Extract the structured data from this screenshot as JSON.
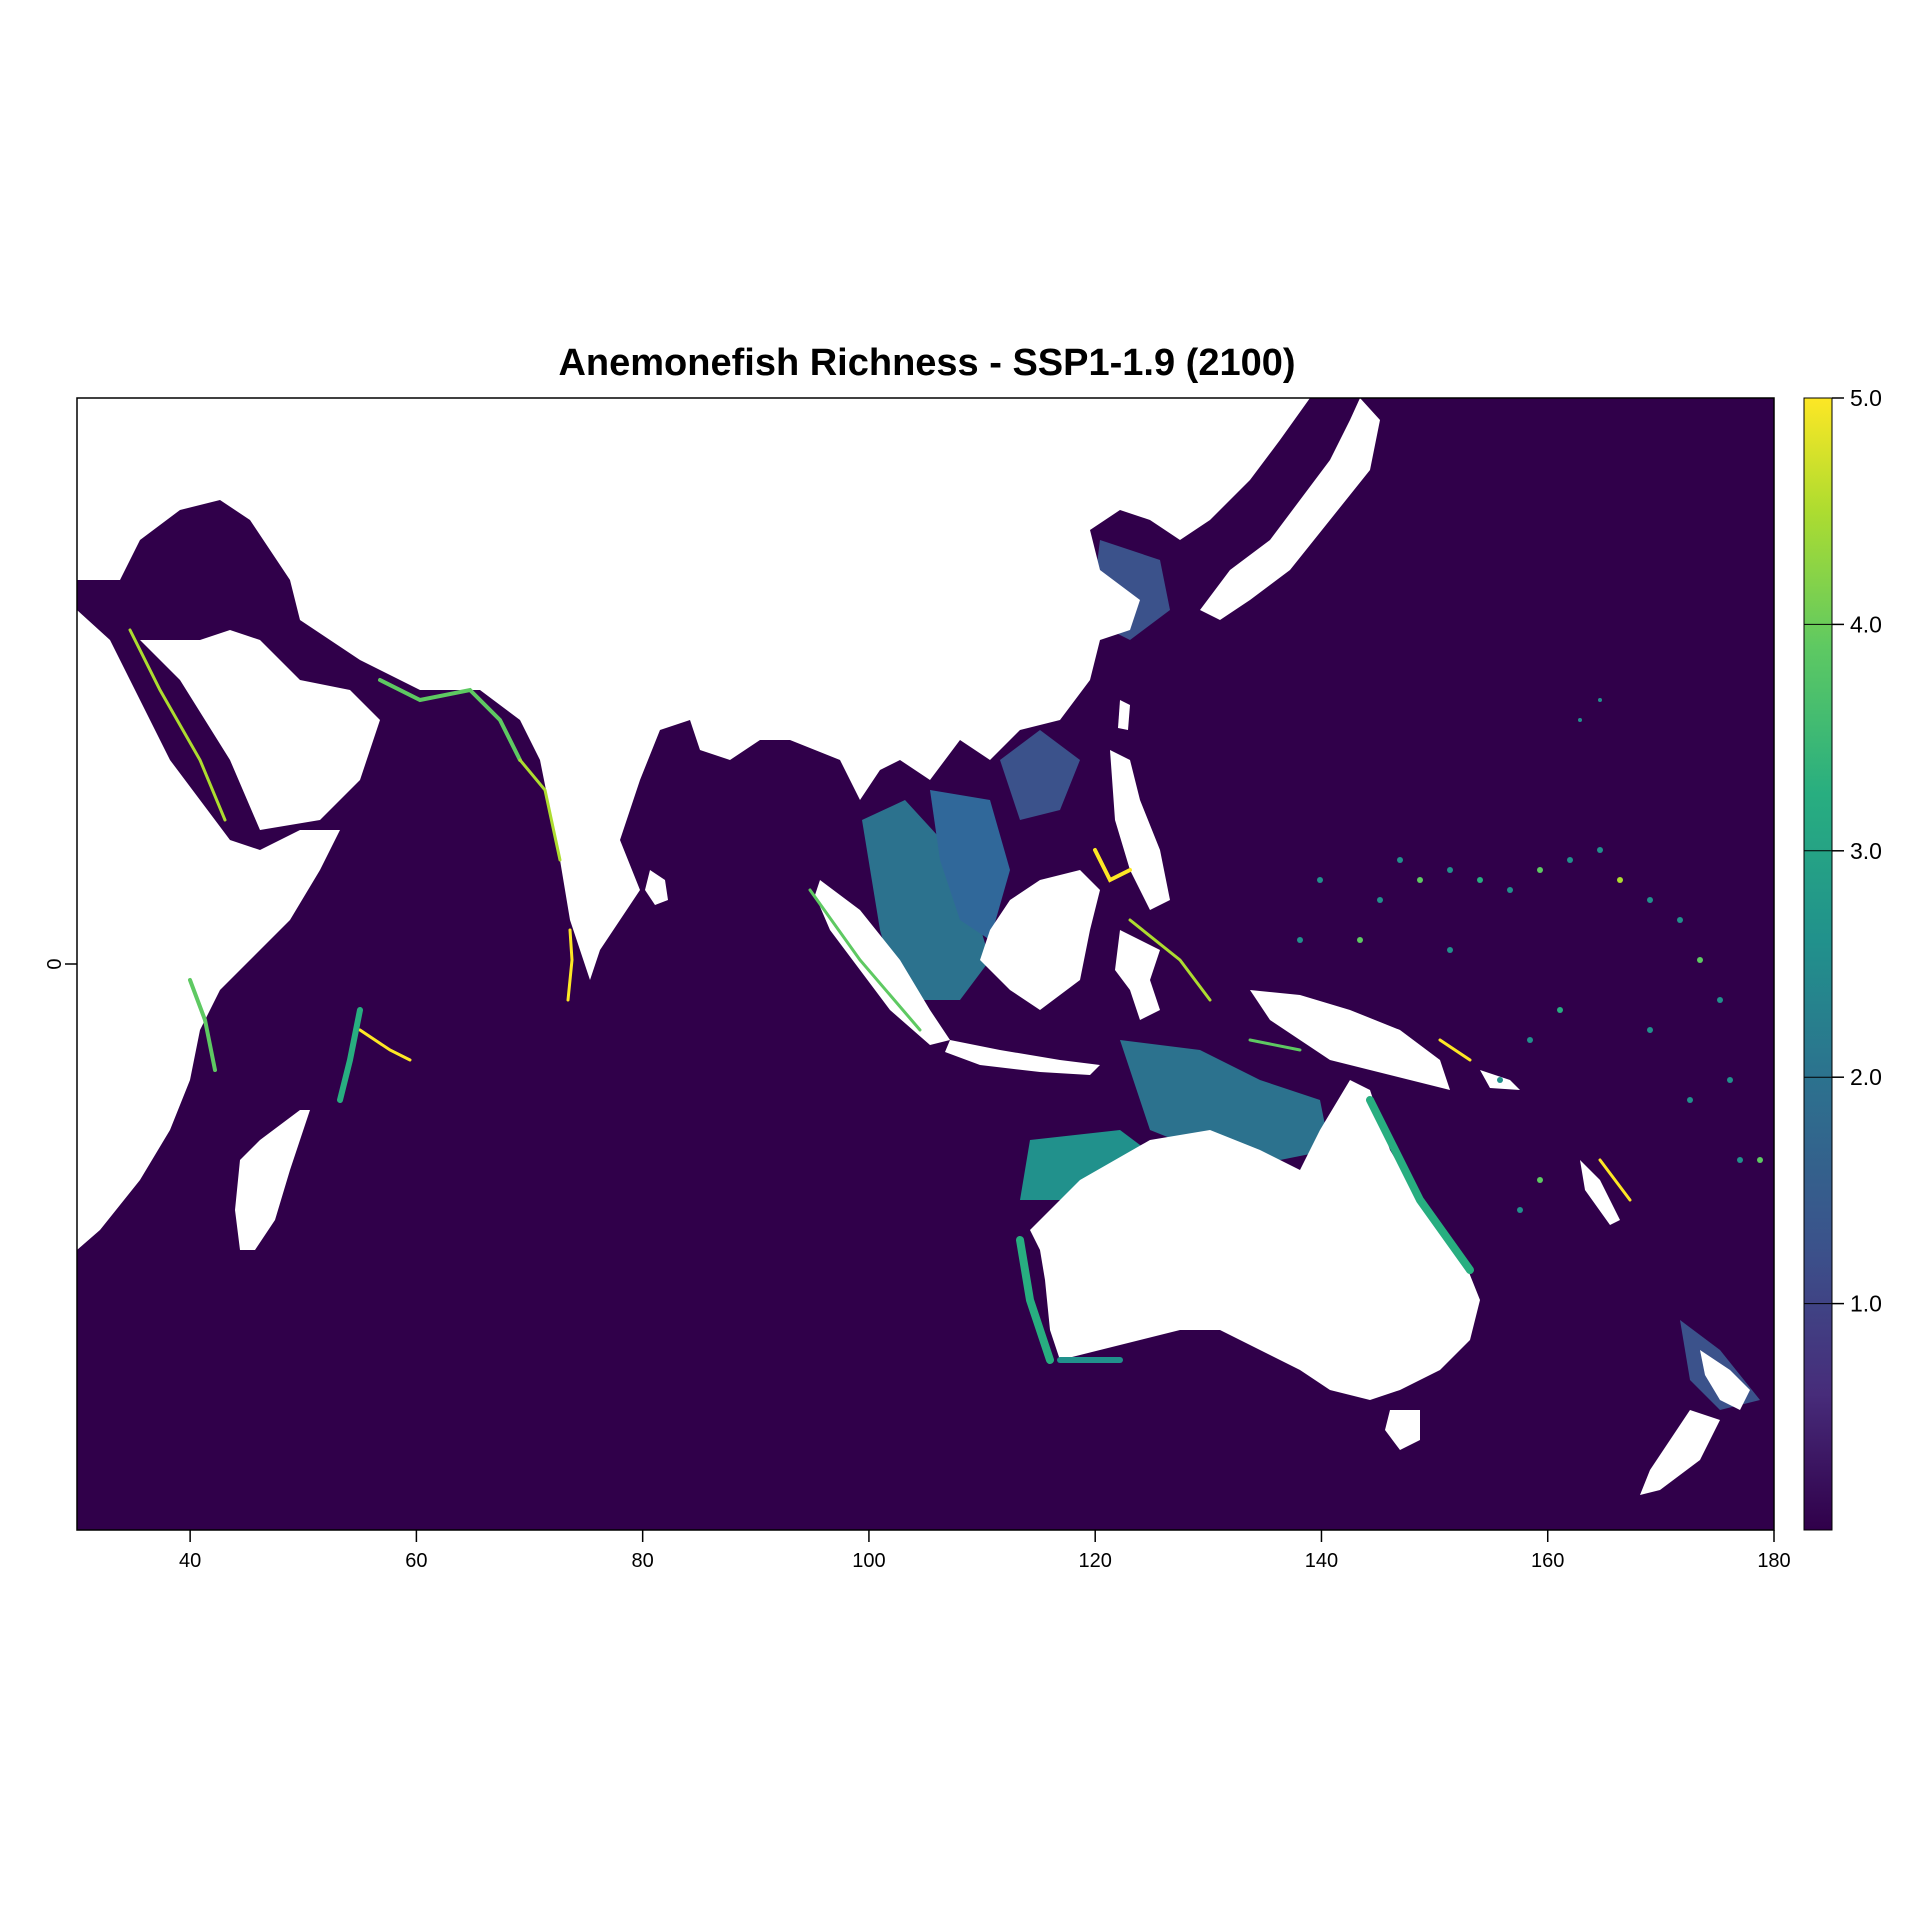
{
  "chart_data": {
    "type": "heatmap",
    "title": "Anemonefish Richness - SSP1-1.9 (2100)",
    "xlabel": "",
    "ylabel": "",
    "xlim": [
      30,
      180
    ],
    "ylim": [
      -50,
      50
    ],
    "x_ticks": [
      "40",
      "60",
      "80",
      "100",
      "120",
      "140",
      "160",
      "180"
    ],
    "x_tick_values": [
      40,
      60,
      80,
      100,
      120,
      140,
      160,
      180
    ],
    "y_ticks": [
      "0"
    ],
    "y_tick_values": [
      0
    ],
    "colorbar": {
      "range": [
        0,
        5
      ],
      "ticks": [
        "1.0",
        "2.0",
        "3.0",
        "4.0",
        "5.0"
      ],
      "tick_values": [
        1,
        2,
        3,
        4,
        5
      ],
      "palette": "viridis",
      "colors": [
        "#440154",
        "#3b528b",
        "#21918c",
        "#5ec962",
        "#fde725"
      ]
    },
    "background_value_color": "#30004a",
    "land_color": "#ffffff",
    "grid": false
  }
}
